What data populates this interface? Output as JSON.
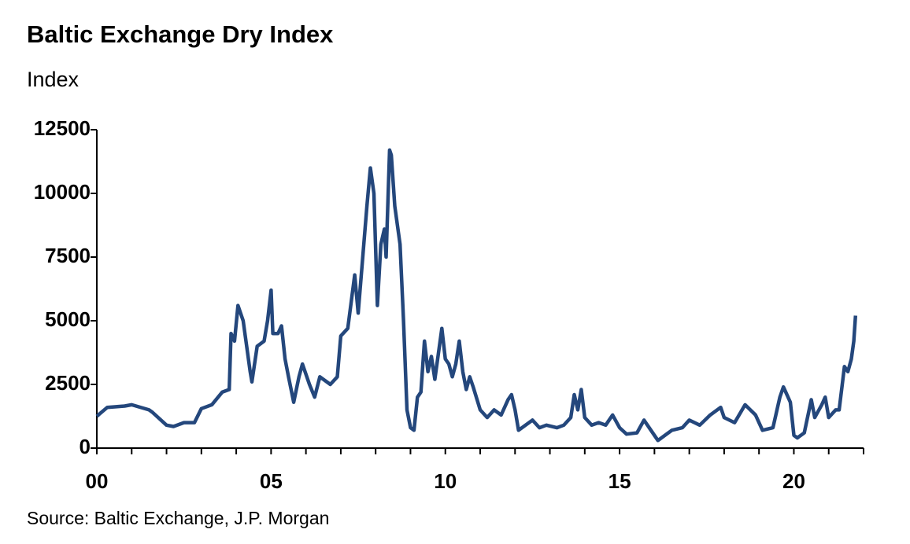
{
  "chart_data": {
    "type": "line",
    "title": "Baltic Exchange Dry Index",
    "subtitle": "Index",
    "source": "Source: Baltic Exchange, J.P. Morgan",
    "xlim": [
      0,
      22
    ],
    "xticks": [
      {
        "value": 0,
        "label": "00"
      },
      {
        "value": 5,
        "label": "05"
      },
      {
        "value": 10,
        "label": "10"
      },
      {
        "value": 15,
        "label": "15"
      },
      {
        "value": 20,
        "label": "20"
      }
    ],
    "xminorticks": [
      1,
      2,
      3,
      4,
      6,
      7,
      8,
      9,
      11,
      12,
      13,
      14,
      16,
      17,
      18,
      19,
      21,
      22
    ],
    "ylim": [
      0,
      12500
    ],
    "yticks": [
      0,
      2500,
      5000,
      7500,
      10000,
      12500
    ],
    "grid": false,
    "series": [
      {
        "name": "Baltic Exchange Dry Index",
        "color": "#24477c",
        "x": [
          0,
          0.3,
          0.8,
          1.0,
          1.5,
          1.6,
          2.0,
          2.2,
          2.5,
          2.8,
          3.0,
          3.3,
          3.6,
          3.8,
          3.85,
          3.95,
          4.05,
          4.2,
          4.4,
          4.45,
          4.6,
          4.8,
          4.9,
          5.0,
          5.05,
          5.2,
          5.3,
          5.4,
          5.5,
          5.65,
          5.8,
          5.9,
          6.1,
          6.25,
          6.4,
          6.7,
          6.9,
          7.0,
          7.2,
          7.4,
          7.5,
          7.6,
          7.75,
          7.85,
          7.95,
          8.05,
          8.15,
          8.25,
          8.3,
          8.4,
          8.45,
          8.55,
          8.7,
          8.8,
          8.9,
          9.0,
          9.1,
          9.2,
          9.3,
          9.4,
          9.5,
          9.6,
          9.7,
          9.9,
          10.0,
          10.1,
          10.2,
          10.3,
          10.4,
          10.5,
          10.6,
          10.7,
          10.8,
          11.0,
          11.2,
          11.4,
          11.6,
          11.8,
          11.9,
          12.0,
          12.1,
          12.3,
          12.5,
          12.7,
          12.9,
          13.2,
          13.4,
          13.6,
          13.7,
          13.8,
          13.9,
          14.0,
          14.2,
          14.4,
          14.6,
          14.8,
          15.0,
          15.2,
          15.5,
          15.7,
          15.9,
          16.1,
          16.3,
          16.5,
          16.8,
          17.0,
          17.3,
          17.6,
          17.9,
          18.0,
          18.3,
          18.6,
          18.9,
          19.1,
          19.4,
          19.6,
          19.7,
          19.9,
          20.0,
          20.1,
          20.3,
          20.5,
          20.6,
          20.8,
          20.9,
          21.0,
          21.2,
          21.3,
          21.45,
          21.55,
          21.65,
          21.72,
          21.77
        ],
        "values": [
          1250,
          1600,
          1650,
          1700,
          1500,
          1400,
          900,
          850,
          1000,
          1000,
          1550,
          1700,
          2200,
          2300,
          4500,
          4200,
          5600,
          5000,
          3000,
          2600,
          4000,
          4200,
          5000,
          6200,
          4500,
          4500,
          4800,
          3500,
          2800,
          1800,
          2800,
          3300,
          2500,
          2000,
          2800,
          2500,
          2800,
          4400,
          4700,
          6800,
          5300,
          7000,
          9500,
          11000,
          10000,
          5600,
          8000,
          8600,
          7500,
          11700,
          11500,
          9500,
          8000,
          5000,
          1500,
          800,
          700,
          2000,
          2200,
          4200,
          3000,
          3600,
          2700,
          4700,
          3500,
          3300,
          2800,
          3300,
          4200,
          3000,
          2300,
          2800,
          2400,
          1500,
          1200,
          1500,
          1300,
          1900,
          2100,
          1500,
          700,
          900,
          1100,
          800,
          900,
          800,
          900,
          1200,
          2100,
          1500,
          2300,
          1200,
          900,
          1000,
          900,
          1300,
          800,
          550,
          600,
          1100,
          700,
          300,
          500,
          700,
          800,
          1100,
          900,
          1300,
          1600,
          1200,
          1000,
          1700,
          1300,
          700,
          800,
          2000,
          2400,
          1800,
          500,
          400,
          600,
          1900,
          1200,
          1700,
          2000,
          1200,
          1500,
          1500,
          3200,
          3000,
          3500,
          4200,
          5200
        ]
      }
    ]
  }
}
